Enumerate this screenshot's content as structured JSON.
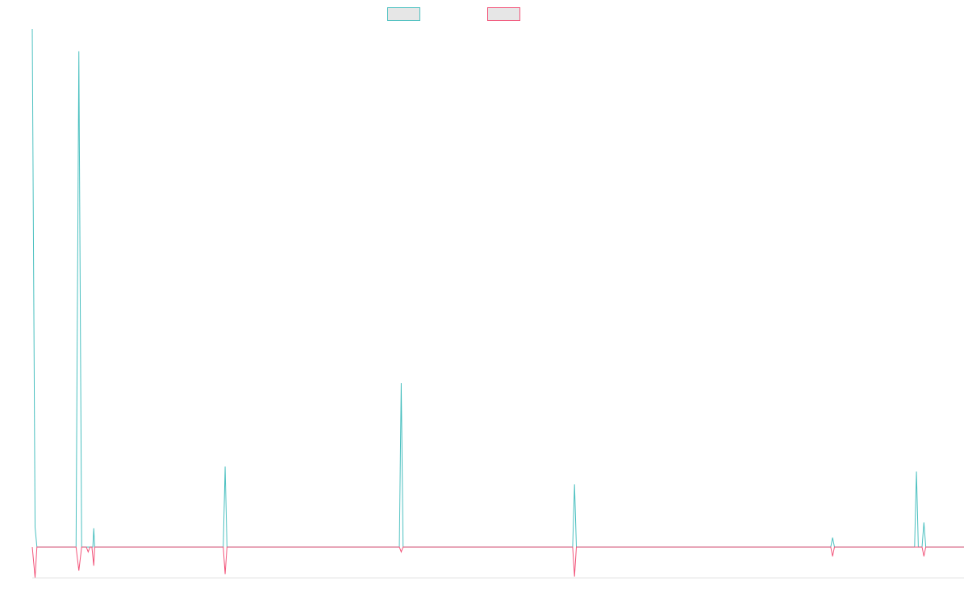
{
  "chart_data": {
    "type": "line",
    "title": "",
    "xlabel": "",
    "ylabel": "",
    "xlim": [
      0,
      1000
    ],
    "ylim": [
      -6.2,
      105
    ],
    "grid": false,
    "legend": {
      "placement": "top-center",
      "entries": [
        "",
        ""
      ]
    },
    "series": [
      {
        "name": "",
        "color": "#4bc0c0",
        "fill": "#e6e6e6",
        "points": [
          [
            0,
            105
          ],
          [
            3,
            4
          ],
          [
            5,
            0
          ],
          [
            47,
            0
          ],
          [
            50,
            100.5
          ],
          [
            53,
            0
          ],
          [
            58,
            0
          ],
          [
            65,
            0
          ],
          [
            66,
            3.8
          ],
          [
            67,
            0
          ],
          [
            205,
            0
          ],
          [
            207,
            16.3
          ],
          [
            209,
            0
          ],
          [
            394,
            0
          ],
          [
            396,
            33.2
          ],
          [
            398,
            0
          ],
          [
            580,
            0
          ],
          [
            582,
            12.7
          ],
          [
            584,
            0
          ],
          [
            857,
            0
          ],
          [
            859,
            1.9
          ],
          [
            861,
            0
          ],
          [
            947,
            0
          ],
          [
            949,
            15.3
          ],
          [
            951,
            0
          ],
          [
            955,
            0
          ],
          [
            957,
            5
          ],
          [
            959,
            0
          ],
          [
            1000,
            0
          ]
        ]
      },
      {
        "name": "",
        "color": "#f2547a",
        "fill": "#e6e6e6",
        "points": [
          [
            0,
            0
          ],
          [
            3,
            -6.2
          ],
          [
            5,
            0
          ],
          [
            47,
            0
          ],
          [
            50,
            -4.8
          ],
          [
            53,
            0
          ],
          [
            58,
            0
          ],
          [
            60,
            -1
          ],
          [
            62,
            0
          ],
          [
            64,
            0
          ],
          [
            66,
            -3.8
          ],
          [
            67,
            0
          ],
          [
            205,
            0
          ],
          [
            207,
            -5.5
          ],
          [
            209,
            0
          ],
          [
            394,
            0
          ],
          [
            396,
            -1
          ],
          [
            398,
            0
          ],
          [
            580,
            0
          ],
          [
            582,
            -6
          ],
          [
            584,
            0
          ],
          [
            857,
            0
          ],
          [
            859,
            -1.9
          ],
          [
            861,
            0
          ],
          [
            955,
            0
          ],
          [
            957,
            -1.9
          ],
          [
            959,
            0
          ],
          [
            1000,
            0
          ]
        ]
      }
    ]
  }
}
